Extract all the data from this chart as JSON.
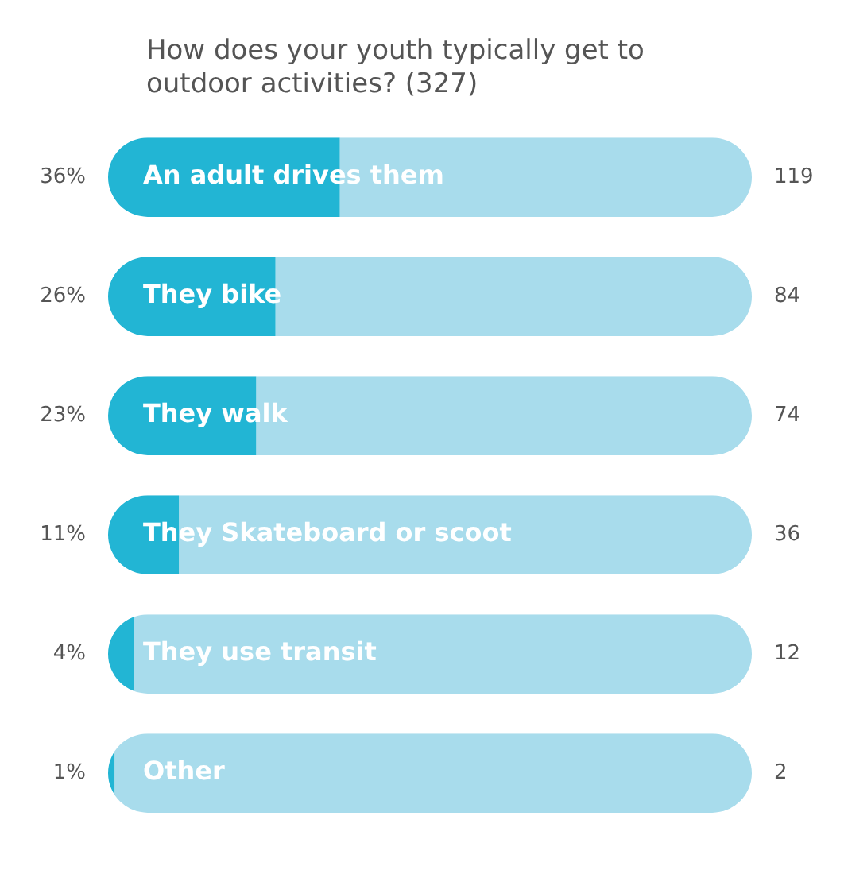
{
  "chart_data": {
    "type": "bar",
    "orientation": "horizontal",
    "stacked": true,
    "title": "How does your youth typically get to outdoor activities? (327)",
    "categories": [
      "An adult drives them",
      "They bike",
      "They walk",
      "They Skateboard or scoot",
      "They use transit",
      "Other"
    ],
    "series": [
      {
        "color": "#22b5d4",
        "values": [
          36,
          26,
          23,
          11,
          4,
          1
        ],
        "value_labels": [
          "36%",
          "26%",
          "23%",
          "11%",
          "4%",
          "1%"
        ]
      },
      {
        "color": "#a8dcec",
        "values": [
          64,
          74,
          77,
          89,
          96,
          99
        ]
      }
    ],
    "xlim": [
      0,
      100
    ],
    "legend": false,
    "annotations": [
      "119",
      "84",
      "74",
      "36",
      "12",
      "2"
    ]
  }
}
